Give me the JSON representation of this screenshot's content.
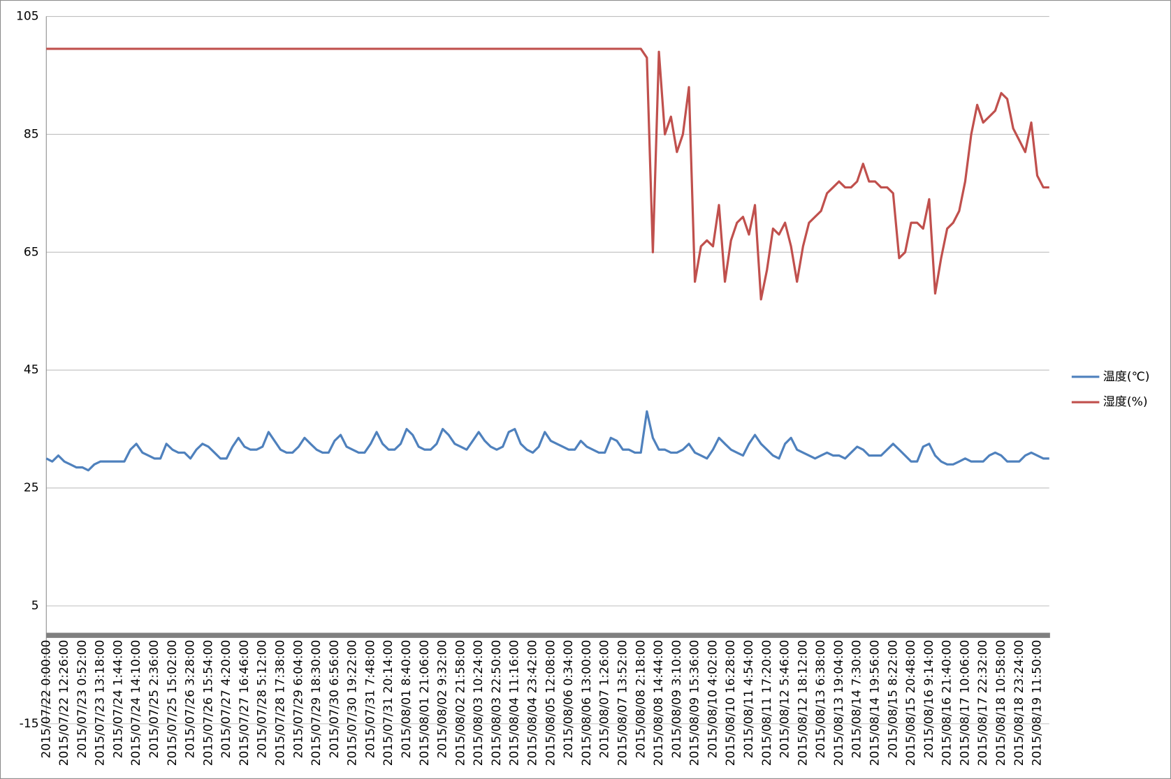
{
  "chart_data": {
    "type": "line",
    "categories": [
      "2015/07/22 0:00:00",
      null,
      null,
      "2015/07/22 12:26:00",
      null,
      null,
      "2015/07/23 0:52:00",
      null,
      null,
      "2015/07/23 13:18:00",
      null,
      null,
      "2015/07/24 1:44:00",
      null,
      null,
      "2015/07/24 14:10:00",
      null,
      null,
      "2015/07/25 2:36:00",
      null,
      null,
      "2015/07/25 15:02:00",
      null,
      null,
      "2015/07/26 3:28:00",
      null,
      null,
      "2015/07/26 15:54:00",
      null,
      null,
      "2015/07/27 4:20:00",
      null,
      null,
      "2015/07/27 16:46:00",
      null,
      null,
      "2015/07/28 5:12:00",
      null,
      null,
      "2015/07/28 17:38:00",
      null,
      null,
      "2015/07/29 6:04:00",
      null,
      null,
      "2015/07/29 18:30:00",
      null,
      null,
      "2015/07/30 6:56:00",
      null,
      null,
      "2015/07/30 19:22:00",
      null,
      null,
      "2015/07/31 7:48:00",
      null,
      null,
      "2015/07/31 20:14:00",
      null,
      null,
      "2015/08/01 8:40:00",
      null,
      null,
      "2015/08/01 21:06:00",
      null,
      null,
      "2015/08/02 9:32:00",
      null,
      null,
      "2015/08/02 21:58:00",
      null,
      null,
      "2015/08/03 10:24:00",
      null,
      null,
      "2015/08/03 22:50:00",
      null,
      null,
      "2015/08/04 11:16:00",
      null,
      null,
      "2015/08/04 23:42:00",
      null,
      null,
      "2015/08/05 12:08:00",
      null,
      null,
      "2015/08/06 0:34:00",
      null,
      null,
      "2015/08/06 13:00:00",
      null,
      null,
      "2015/08/07 1:26:00",
      null,
      null,
      "2015/08/07 13:52:00",
      null,
      null,
      "2015/08/08 2:18:00",
      null,
      null,
      "2015/08/08 14:44:00",
      null,
      null,
      "2015/08/09 3:10:00",
      null,
      null,
      "2015/08/09 15:36:00",
      null,
      null,
      "2015/08/10 4:02:00",
      null,
      null,
      "2015/08/10 16:28:00",
      null,
      null,
      "2015/08/11 4:54:00",
      null,
      null,
      "2015/08/11 17:20:00",
      null,
      null,
      "2015/08/12 5:46:00",
      null,
      null,
      "2015/08/12 18:12:00",
      null,
      null,
      "2015/08/13 6:38:00",
      null,
      null,
      "2015/08/13 19:04:00",
      null,
      null,
      "2015/08/14 7:30:00",
      null,
      null,
      "2015/08/14 19:56:00",
      null,
      null,
      "2015/08/15 8:22:00",
      null,
      null,
      "2015/08/15 20:48:00",
      null,
      null,
      "2015/08/16 9:14:00",
      null,
      null,
      "2015/08/16 21:40:00",
      null,
      null,
      "2015/08/17 10:06:00",
      null,
      null,
      "2015/08/17 22:32:00",
      null,
      null,
      "2015/08/18 10:58:00",
      null,
      null,
      "2015/08/18 23:24:00",
      null,
      null,
      "2015/08/19 11:50:00",
      null,
      null
    ],
    "series": [
      {
        "name": "温度(℃)",
        "color": "#4f81bd",
        "values": [
          30,
          29.5,
          30.5,
          29.5,
          29,
          28.5,
          28.5,
          28,
          29,
          29.5,
          29.5,
          29.5,
          29.5,
          29.5,
          31.5,
          32.5,
          31,
          30.5,
          30,
          30,
          32.5,
          31.5,
          31,
          31,
          30,
          31.5,
          32.5,
          32,
          31,
          30,
          30,
          32,
          33.5,
          32,
          31.5,
          31.5,
          32,
          34.5,
          33,
          31.5,
          31,
          31,
          32,
          33.5,
          32.5,
          31.5,
          31,
          31,
          33,
          34,
          32,
          31.5,
          31,
          31,
          32.5,
          34.5,
          32.5,
          31.5,
          31.5,
          32.5,
          35,
          34,
          32,
          31.5,
          31.5,
          32.5,
          35,
          34,
          32.5,
          32,
          31.5,
          33,
          34.5,
          33,
          32,
          31.5,
          32,
          34.5,
          35,
          32.5,
          31.5,
          31,
          32,
          34.5,
          33,
          32.5,
          32,
          31.5,
          31.5,
          33,
          32,
          31.5,
          31,
          31,
          33.5,
          33,
          31.5,
          31.5,
          31,
          31,
          38,
          33.5,
          31.5,
          31.5,
          31,
          31,
          31.5,
          32.5,
          31,
          30.5,
          30,
          31.5,
          33.5,
          32.5,
          31.5,
          31,
          30.5,
          32.5,
          34,
          32.5,
          31.5,
          30.5,
          30,
          32.5,
          33.5,
          31.5,
          31,
          30.5,
          30,
          30.5,
          31,
          30.5,
          30.5,
          30,
          31,
          32,
          31.5,
          30.5,
          30.5,
          30.5,
          31.5,
          32.5,
          31.5,
          30.5,
          29.5,
          29.5,
          32,
          32.5,
          30.5,
          29.5,
          29,
          29,
          29.5,
          30,
          29.5,
          29.5,
          29.5,
          30.5,
          31,
          30.5,
          29.5,
          29.5,
          29.5,
          30.5,
          31,
          30.5,
          30,
          30
        ]
      },
      {
        "name": "湿度(%)",
        "color": "#c0504d",
        "values": [
          99.5,
          99.5,
          99.5,
          99.5,
          99.5,
          99.5,
          99.5,
          99.5,
          99.5,
          99.5,
          99.5,
          99.5,
          99.5,
          99.5,
          99.5,
          99.5,
          99.5,
          99.5,
          99.5,
          99.5,
          99.5,
          99.5,
          99.5,
          99.5,
          99.5,
          99.5,
          99.5,
          99.5,
          99.5,
          99.5,
          99.5,
          99.5,
          99.5,
          99.5,
          99.5,
          99.5,
          99.5,
          99.5,
          99.5,
          99.5,
          99.5,
          99.5,
          99.5,
          99.5,
          99.5,
          99.5,
          99.5,
          99.5,
          99.5,
          99.5,
          99.5,
          99.5,
          99.5,
          99.5,
          99.5,
          99.5,
          99.5,
          99.5,
          99.5,
          99.5,
          99.5,
          99.5,
          99.5,
          99.5,
          99.5,
          99.5,
          99.5,
          99.5,
          99.5,
          99.5,
          99.5,
          99.5,
          99.5,
          99.5,
          99.5,
          99.5,
          99.5,
          99.5,
          99.5,
          99.5,
          99.5,
          99.5,
          99.5,
          99.5,
          99.5,
          99.5,
          99.5,
          99.5,
          99.5,
          99.5,
          99.5,
          99.5,
          99.5,
          99.5,
          99.5,
          99.5,
          99.5,
          99.5,
          99.5,
          99.5,
          98,
          65,
          99,
          85,
          88,
          82,
          85,
          93,
          60,
          66,
          67,
          66,
          73,
          60,
          67,
          70,
          71,
          68,
          73,
          57,
          62,
          69,
          68,
          70,
          66,
          60,
          66,
          70,
          71,
          72,
          75,
          76,
          77,
          76,
          76,
          77,
          80,
          77,
          77,
          76,
          76,
          75,
          64,
          65,
          70,
          70,
          69,
          74,
          58,
          64,
          69,
          70,
          72,
          77,
          85,
          90,
          87,
          88,
          89,
          92,
          91,
          86,
          84,
          82,
          87,
          78,
          76,
          76
        ]
      }
    ],
    "ylim": [
      -15,
      105
    ],
    "yticks": [
      -15,
      5,
      25,
      45,
      65,
      85,
      105
    ],
    "grid": true,
    "legend": "right"
  }
}
